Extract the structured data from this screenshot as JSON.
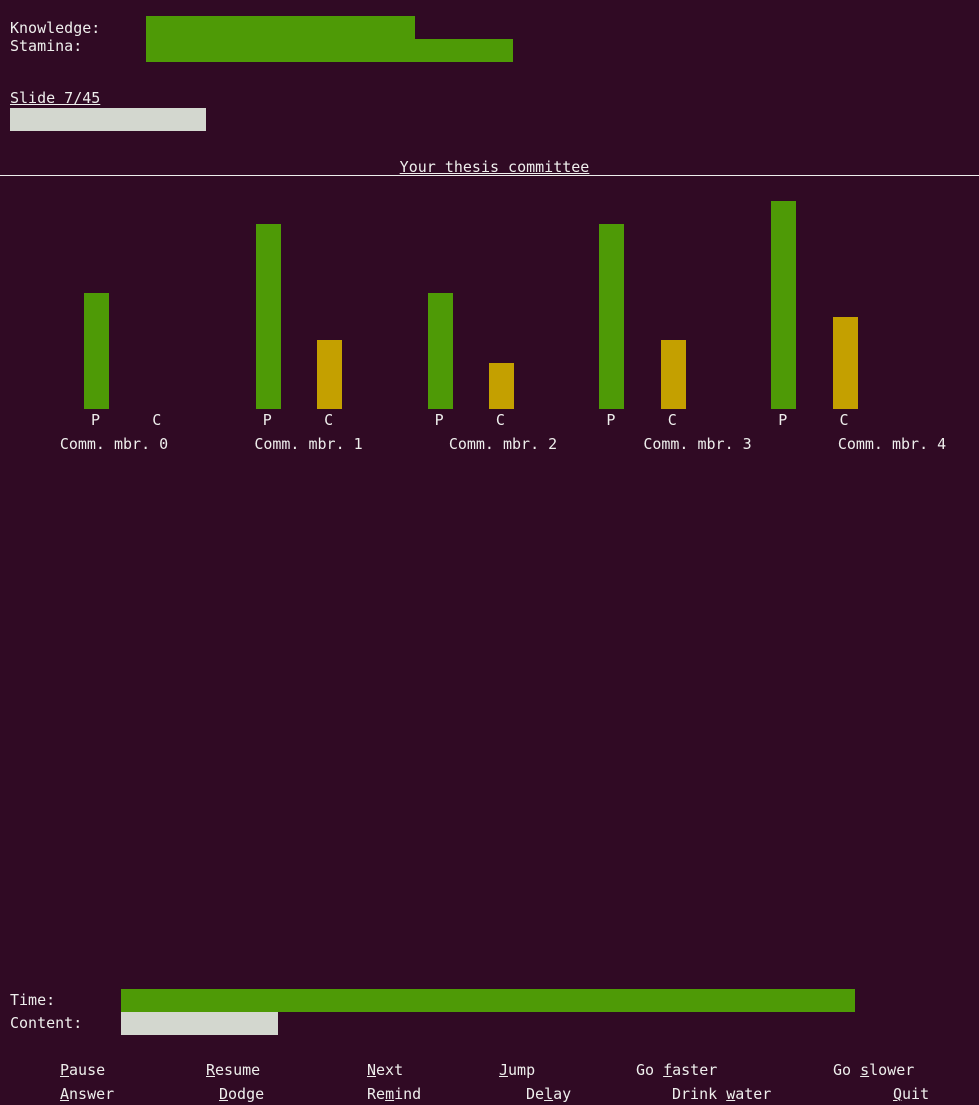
{
  "stats": {
    "knowledge": {
      "label": "Knowledge:",
      "value": 27.5
    },
    "stamina": {
      "label": "Stamina:",
      "value": 37.5
    }
  },
  "slide": {
    "label": "Slide 7/45",
    "value": 20
  },
  "chart_data": {
    "type": "bar",
    "title": "Your thesis committee",
    "categories": [
      "Comm. mbr. 0",
      "Comm. mbr. 1",
      "Comm. mbr. 2",
      "Comm. mbr. 3",
      "Comm. mbr. 4"
    ],
    "series": [
      {
        "name": "P",
        "color": "#4e9a06",
        "values": [
          5,
          8,
          5,
          8,
          9
        ]
      },
      {
        "name": "C",
        "color": "#c4a000",
        "values": [
          0,
          3,
          2,
          3,
          4
        ]
      }
    ],
    "ylim": [
      0,
      9
    ]
  },
  "meters": {
    "time": {
      "label": "Time:",
      "value": 75
    },
    "content": {
      "label": "Content:",
      "value": 16
    }
  },
  "menu": [
    {
      "label": "Pause",
      "key": "P"
    },
    {
      "label": "Resume",
      "key": "R"
    },
    {
      "label": "Next",
      "key": "N"
    },
    {
      "label": "Jump",
      "key": "J"
    },
    {
      "label": "Go faster",
      "key": "f"
    },
    {
      "label": "Go slower",
      "key": "s"
    },
    {
      "label": "Answer",
      "key": "A"
    },
    {
      "label": "Dodge",
      "key": "D"
    },
    {
      "label": "Remind",
      "key": "m"
    },
    {
      "label": "Delay",
      "key": "l"
    },
    {
      "label": "Drink water",
      "key": "w"
    },
    {
      "label": "Quit",
      "key": "Q"
    }
  ]
}
